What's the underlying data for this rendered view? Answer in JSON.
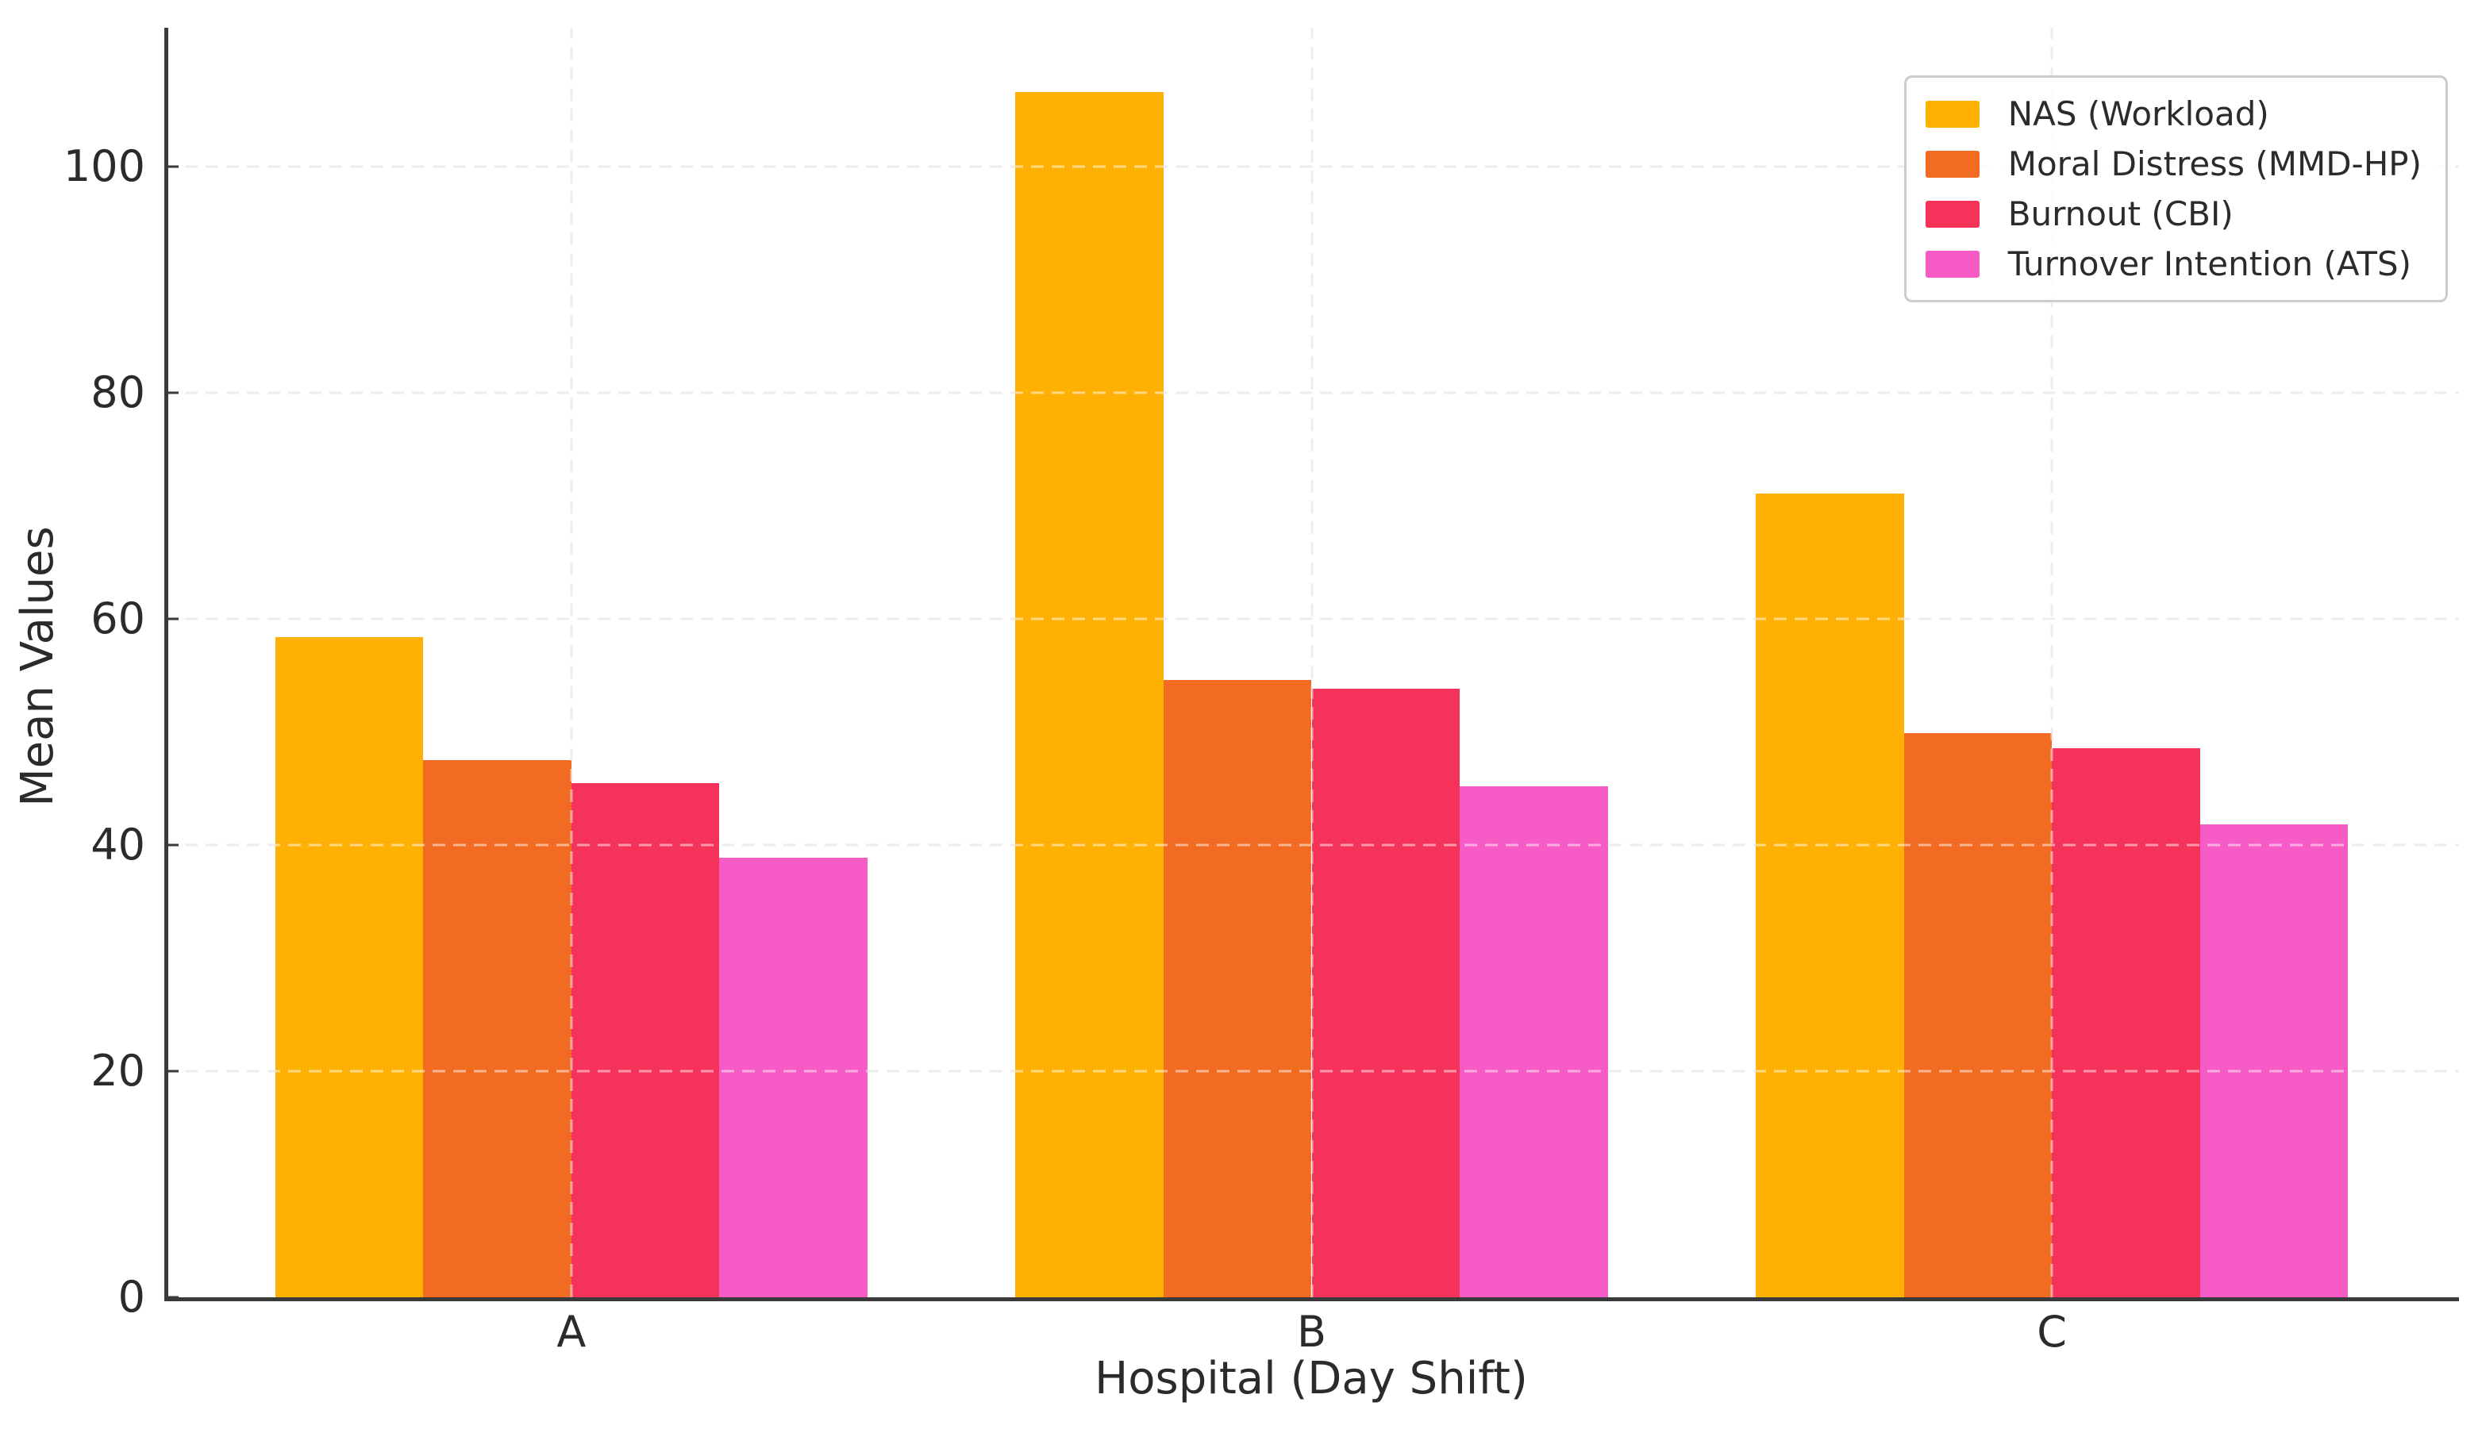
{
  "chart_data": {
    "type": "bar",
    "title": "",
    "xlabel": "Hospital (Day Shift)",
    "ylabel": "Mean Values",
    "categories": [
      "A",
      "B",
      "C"
    ],
    "series": [
      {
        "name": "NAS (Workload)",
        "color": "#FFB005",
        "values": [
          58.4,
          106.6,
          71.1
        ]
      },
      {
        "name": "Moral Distress (MMD-HP)",
        "color": "#F26B22",
        "values": [
          47.5,
          54.6,
          49.9
        ]
      },
      {
        "name": "Burnout (CBI)",
        "color": "#F5335A",
        "values": [
          45.5,
          53.8,
          48.6
        ]
      },
      {
        "name": "Turnover Intention (ATS)",
        "color": "#F75BC5",
        "values": [
          38.9,
          45.2,
          41.8
        ]
      }
    ],
    "yticks": [
      0,
      20,
      40,
      60,
      80,
      100
    ],
    "ylim": [
      0,
      112.3
    ],
    "xlim": [
      -0.55,
      2.55
    ],
    "bar_width": 0.2,
    "grid": {
      "visible": true,
      "axis": "both",
      "style": "dashed",
      "color": "#DBDBDB"
    },
    "legend": {
      "position": "upper right",
      "border_color": "#CCCCCC"
    },
    "styles": {
      "text_color": "#2B2B2B",
      "spine_color": "#3A3A3A",
      "background": "#FFFFFF"
    }
  }
}
